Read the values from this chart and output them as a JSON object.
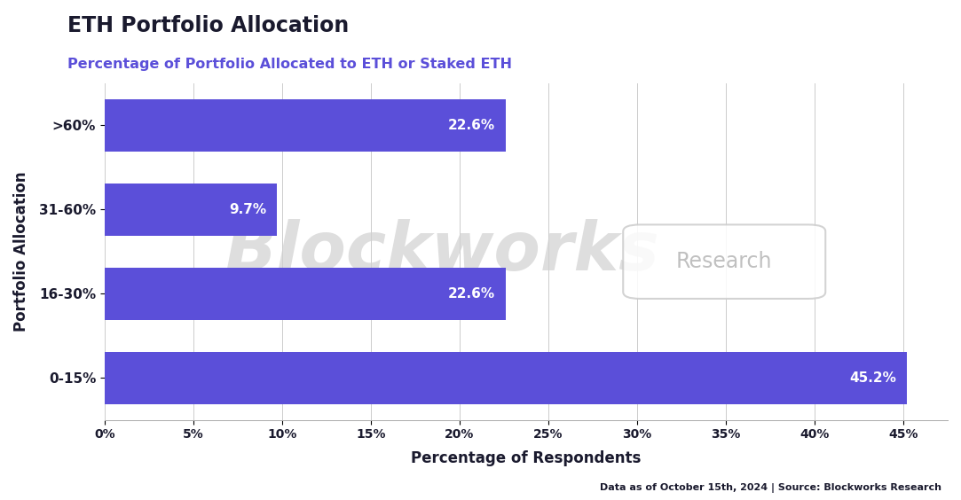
{
  "title": "ETH Portfolio Allocation",
  "subtitle": "Percentage of Portfolio Allocated to ETH or Staked ETH",
  "categories": [
    "0-15%",
    "16-30%",
    "31-60%",
    ">60%"
  ],
  "values": [
    45.2,
    22.6,
    9.7,
    22.6
  ],
  "bar_color": "#5B4FD9",
  "text_color_label": "#FFFFFF",
  "title_color": "#1a1a2e",
  "subtitle_color": "#5B4FD9",
  "xlabel": "Percentage of Respondents",
  "ylabel": "Portfolio Allocation",
  "xlim": [
    0,
    47.5
  ],
  "xticks": [
    0,
    5,
    10,
    15,
    20,
    25,
    30,
    35,
    40,
    45
  ],
  "xtick_labels": [
    "0%",
    "5%",
    "10%",
    "15%",
    "20%",
    "25%",
    "30%",
    "35%",
    "40%",
    "45%"
  ],
  "footnote": "Data as of October 15th, 2024 | Source: Blockworks Research",
  "background_color": "#FFFFFF",
  "watermark_text": "Blockworks",
  "watermark_text2": "Research"
}
